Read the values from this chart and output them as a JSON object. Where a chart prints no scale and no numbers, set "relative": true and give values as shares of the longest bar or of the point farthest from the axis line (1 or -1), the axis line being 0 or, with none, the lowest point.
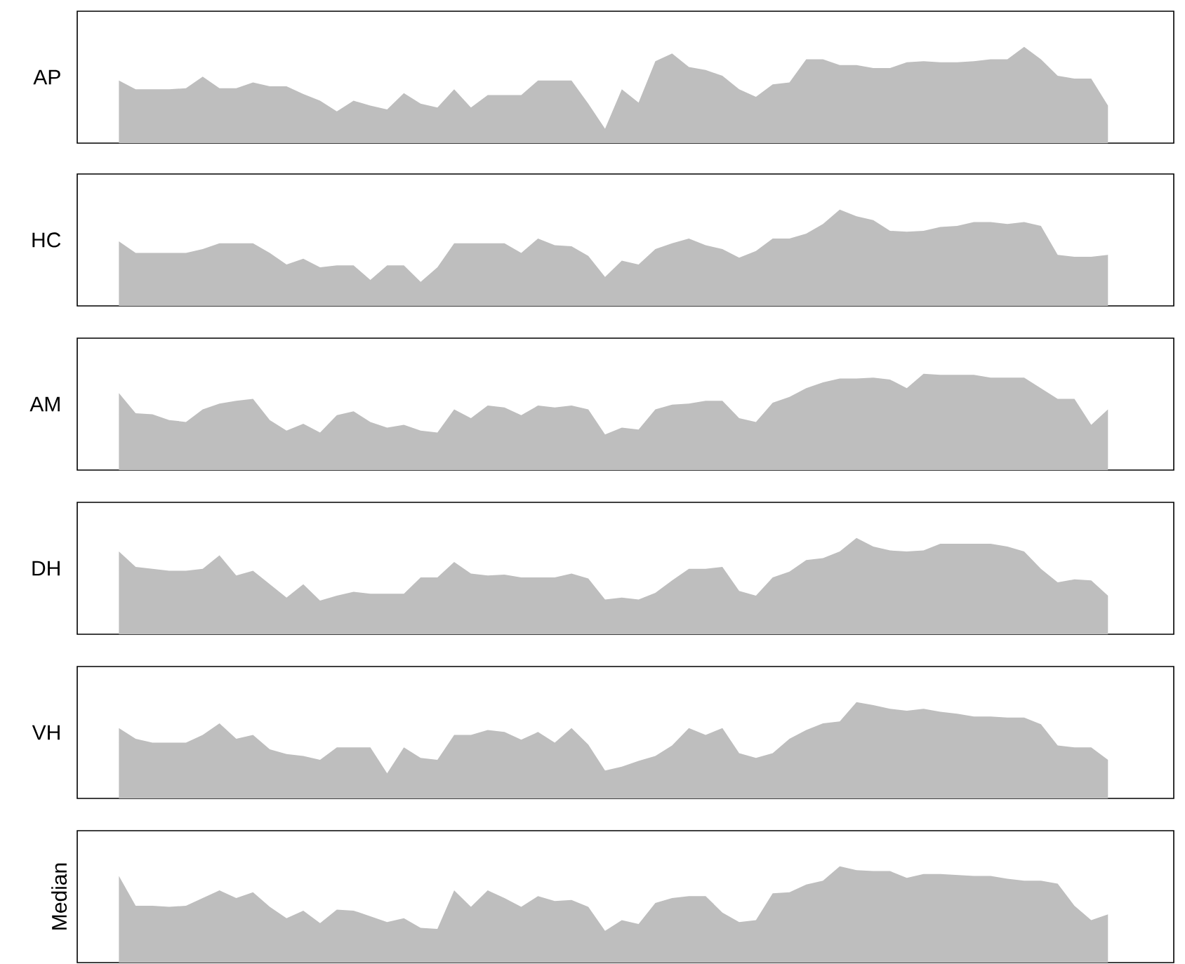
{
  "chart_data": [
    {
      "type": "area",
      "ylabel": "AP",
      "relative": true,
      "color": "#bebebe",
      "categories": [
        null,
        null,
        null,
        null,
        null,
        null,
        null,
        null,
        null,
        null,
        null,
        null,
        null,
        null,
        null,
        null,
        null,
        null,
        null,
        null,
        null,
        null,
        null,
        null,
        null,
        null,
        null,
        null,
        null,
        null,
        null,
        null,
        null,
        null,
        null,
        null,
        null,
        null,
        null,
        null,
        null,
        null,
        null,
        null,
        null,
        null,
        null,
        null,
        null,
        null,
        null,
        null,
        null,
        null,
        null,
        null,
        null,
        null,
        null,
        null
      ],
      "values": [
        0.65,
        0.56,
        0.56,
        0.56,
        0.57,
        0.69,
        0.57,
        0.57,
        0.63,
        0.59,
        0.59,
        0.51,
        0.44,
        0.33,
        0.44,
        0.39,
        0.35,
        0.52,
        0.41,
        0.37,
        0.56,
        0.37,
        0.5,
        0.5,
        0.5,
        0.65,
        0.65,
        0.65,
        0.41,
        0.15,
        0.56,
        0.42,
        0.85,
        0.93,
        0.79,
        0.76,
        0.7,
        0.56,
        0.48,
        0.61,
        0.63,
        0.87,
        0.87,
        0.81,
        0.81,
        0.78,
        0.78,
        0.84,
        0.85,
        0.84,
        0.84,
        0.85,
        0.87,
        0.87,
        1,
        0.87,
        0.7,
        0.67,
        0.67,
        0.39
      ]
    },
    {
      "type": "area",
      "ylabel": "HC",
      "relative": true,
      "color": "#bebebe",
      "categories": [
        null,
        null,
        null,
        null,
        null,
        null,
        null,
        null,
        null,
        null,
        null,
        null,
        null,
        null,
        null,
        null,
        null,
        null,
        null,
        null,
        null,
        null,
        null,
        null,
        null,
        null,
        null,
        null,
        null,
        null,
        null,
        null,
        null,
        null,
        null,
        null,
        null,
        null,
        null,
        null,
        null,
        null,
        null,
        null,
        null,
        null,
        null,
        null,
        null,
        null,
        null,
        null,
        null,
        null,
        null,
        null,
        null,
        null,
        null,
        null
      ],
      "values": [
        0.67,
        0.55,
        0.55,
        0.55,
        0.55,
        0.59,
        0.65,
        0.65,
        0.65,
        0.55,
        0.43,
        0.49,
        0.4,
        0.42,
        0.42,
        0.27,
        0.42,
        0.42,
        0.25,
        0.4,
        0.65,
        0.65,
        0.65,
        0.65,
        0.55,
        0.7,
        0.63,
        0.62,
        0.52,
        0.3,
        0.47,
        0.43,
        0.59,
        0.65,
        0.7,
        0.63,
        0.59,
        0.5,
        0.57,
        0.7,
        0.7,
        0.75,
        0.85,
        1,
        0.93,
        0.89,
        0.78,
        0.77,
        0.78,
        0.82,
        0.83,
        0.87,
        0.87,
        0.85,
        0.87,
        0.83,
        0.53,
        0.51,
        0.51,
        0.53
      ]
    },
    {
      "type": "area",
      "ylabel": "AM",
      "relative": true,
      "color": "#bebebe",
      "categories": [
        null,
        null,
        null,
        null,
        null,
        null,
        null,
        null,
        null,
        null,
        null,
        null,
        null,
        null,
        null,
        null,
        null,
        null,
        null,
        null,
        null,
        null,
        null,
        null,
        null,
        null,
        null,
        null,
        null,
        null,
        null,
        null,
        null,
        null,
        null,
        null,
        null,
        null,
        null,
        null,
        null,
        null,
        null,
        null,
        null,
        null,
        null,
        null,
        null,
        null,
        null,
        null,
        null,
        null,
        null,
        null,
        null,
        null,
        null,
        null
      ],
      "values": [
        0.8,
        0.59,
        0.58,
        0.52,
        0.5,
        0.63,
        0.69,
        0.72,
        0.74,
        0.52,
        0.41,
        0.48,
        0.39,
        0.57,
        0.61,
        0.5,
        0.44,
        0.47,
        0.41,
        0.39,
        0.63,
        0.54,
        0.67,
        0.65,
        0.57,
        0.67,
        0.65,
        0.67,
        0.63,
        0.37,
        0.44,
        0.42,
        0.63,
        0.68,
        0.69,
        0.72,
        0.72,
        0.54,
        0.5,
        0.7,
        0.76,
        0.85,
        0.91,
        0.95,
        0.95,
        0.96,
        0.94,
        0.85,
        1,
        0.99,
        0.99,
        0.99,
        0.96,
        0.96,
        0.96,
        0.85,
        0.74,
        0.74,
        0.47,
        0.63
      ]
    },
    {
      "type": "area",
      "ylabel": "DH",
      "relative": true,
      "color": "#bebebe",
      "categories": [
        null,
        null,
        null,
        null,
        null,
        null,
        null,
        null,
        null,
        null,
        null,
        null,
        null,
        null,
        null,
        null,
        null,
        null,
        null,
        null,
        null,
        null,
        null,
        null,
        null,
        null,
        null,
        null,
        null,
        null,
        null,
        null,
        null,
        null,
        null,
        null,
        null,
        null,
        null,
        null,
        null,
        null,
        null,
        null,
        null,
        null,
        null,
        null,
        null,
        null,
        null,
        null,
        null,
        null,
        null,
        null,
        null,
        null,
        null,
        null
      ],
      "values": [
        0.86,
        0.7,
        0.68,
        0.66,
        0.66,
        0.68,
        0.82,
        0.61,
        0.66,
        0.52,
        0.38,
        0.52,
        0.35,
        0.4,
        0.44,
        0.42,
        0.42,
        0.42,
        0.59,
        0.59,
        0.75,
        0.63,
        0.61,
        0.62,
        0.59,
        0.59,
        0.59,
        0.63,
        0.58,
        0.36,
        0.38,
        0.36,
        0.43,
        0.56,
        0.68,
        0.68,
        0.7,
        0.45,
        0.4,
        0.59,
        0.65,
        0.77,
        0.79,
        0.86,
        1,
        0.91,
        0.87,
        0.86,
        0.87,
        0.94,
        0.94,
        0.94,
        0.94,
        0.91,
        0.86,
        0.68,
        0.54,
        0.57,
        0.56,
        0.4
      ]
    },
    {
      "type": "area",
      "ylabel": "VH",
      "relative": true,
      "color": "#bebebe",
      "categories": [
        null,
        null,
        null,
        null,
        null,
        null,
        null,
        null,
        null,
        null,
        null,
        null,
        null,
        null,
        null,
        null,
        null,
        null,
        null,
        null,
        null,
        null,
        null,
        null,
        null,
        null,
        null,
        null,
        null,
        null,
        null,
        null,
        null,
        null,
        null,
        null,
        null,
        null,
        null,
        null,
        null,
        null,
        null,
        null,
        null,
        null,
        null,
        null,
        null,
        null,
        null,
        null,
        null,
        null,
        null,
        null,
        null,
        null,
        null,
        null
      ],
      "values": [
        0.73,
        0.62,
        0.58,
        0.58,
        0.58,
        0.66,
        0.78,
        0.62,
        0.66,
        0.51,
        0.46,
        0.44,
        0.4,
        0.53,
        0.53,
        0.53,
        0.26,
        0.53,
        0.42,
        0.4,
        0.66,
        0.66,
        0.71,
        0.69,
        0.61,
        0.69,
        0.58,
        0.73,
        0.56,
        0.29,
        0.33,
        0.39,
        0.44,
        0.55,
        0.73,
        0.66,
        0.73,
        0.47,
        0.42,
        0.47,
        0.62,
        0.71,
        0.78,
        0.8,
        1,
        0.97,
        0.93,
        0.91,
        0.93,
        0.9,
        0.88,
        0.85,
        0.85,
        0.84,
        0.84,
        0.77,
        0.55,
        0.53,
        0.53,
        0.4
      ]
    },
    {
      "type": "area",
      "ylabel": "Median",
      "relative": true,
      "color": "#bebebe",
      "categories": [
        null,
        null,
        null,
        null,
        null,
        null,
        null,
        null,
        null,
        null,
        null,
        null,
        null,
        null,
        null,
        null,
        null,
        null,
        null,
        null,
        null,
        null,
        null,
        null,
        null,
        null,
        null,
        null,
        null,
        null,
        null,
        null,
        null,
        null,
        null,
        null,
        null,
        null,
        null,
        null,
        null,
        null,
        null,
        null,
        null,
        null,
        null,
        null,
        null,
        null,
        null,
        null,
        null,
        null,
        null,
        null,
        null,
        null,
        null,
        null
      ],
      "values": [
        0.9,
        0.59,
        0.59,
        0.58,
        0.59,
        0.67,
        0.75,
        0.67,
        0.73,
        0.58,
        0.46,
        0.54,
        0.41,
        0.55,
        0.54,
        0.48,
        0.42,
        0.46,
        0.36,
        0.35,
        0.75,
        0.58,
        0.75,
        0.67,
        0.58,
        0.69,
        0.64,
        0.65,
        0.58,
        0.33,
        0.44,
        0.4,
        0.62,
        0.67,
        0.69,
        0.69,
        0.52,
        0.42,
        0.44,
        0.72,
        0.73,
        0.81,
        0.85,
        1,
        0.96,
        0.95,
        0.95,
        0.88,
        0.92,
        0.92,
        0.91,
        0.9,
        0.9,
        0.87,
        0.85,
        0.85,
        0.82,
        0.59,
        0.44,
        0.5
      ]
    }
  ]
}
